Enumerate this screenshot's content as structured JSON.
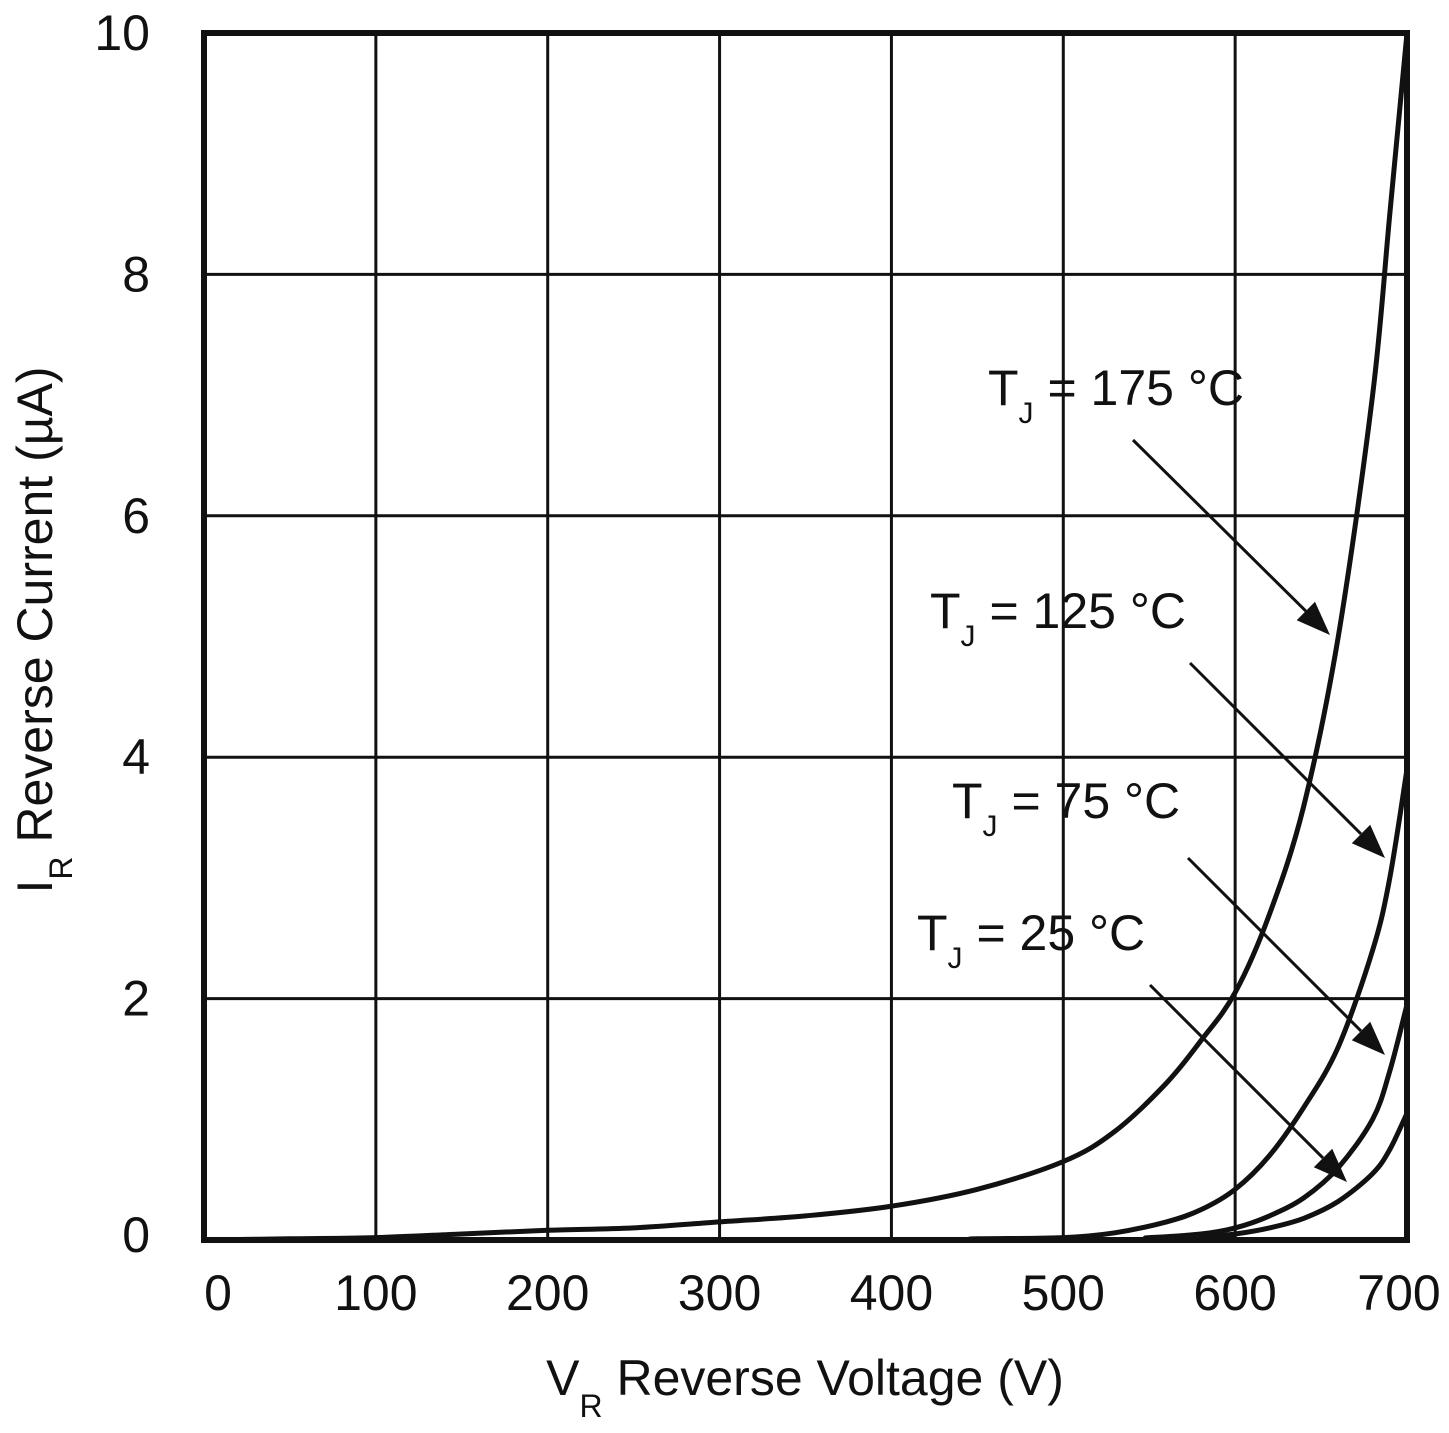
{
  "chart_data": {
    "type": "line",
    "title": "",
    "xlabel": {
      "main": "V",
      "sub": "R",
      "rest": " Reverse Voltage (V)"
    },
    "ylabel": {
      "main": "I",
      "sub": "R",
      "rest": " Reverse Current (µA)"
    },
    "xlim": [
      0,
      700
    ],
    "ylim": [
      0,
      10
    ],
    "xticks": [
      0,
      100,
      200,
      300,
      400,
      500,
      600,
      700
    ],
    "yticks": [
      0,
      2,
      4,
      6,
      8,
      10
    ],
    "xtick_labels": [
      "0",
      "100",
      "200",
      "300",
      "400",
      "500",
      "600",
      "700"
    ],
    "ytick_labels": [
      "0",
      "2",
      "4",
      "6",
      "8",
      "10"
    ],
    "grid": true,
    "colors": {
      "line": "#111111",
      "grid": "#111111",
      "background": "#ffffff"
    },
    "series": [
      {
        "name": "TJ = 175 °C",
        "label": {
          "main": "T",
          "sub": "J",
          "rest": " = 175 °C"
        },
        "x": [
          0,
          50,
          100,
          150,
          200,
          250,
          300,
          350,
          400,
          450,
          500,
          530,
          560,
          580,
          600,
          620,
          640,
          660,
          680,
          690,
          700
        ],
        "y": [
          0,
          0.01,
          0.02,
          0.05,
          0.08,
          0.1,
          0.15,
          0.2,
          0.28,
          0.42,
          0.65,
          0.9,
          1.3,
          1.65,
          2.05,
          2.7,
          3.6,
          5.0,
          7.0,
          8.5,
          10.0
        ]
      },
      {
        "name": "TJ = 125 °C",
        "label": {
          "main": "T",
          "sub": "J",
          "rest": " = 125 °C"
        },
        "x": [
          0,
          400,
          450,
          500,
          530,
          560,
          580,
          600,
          620,
          640,
          660,
          680,
          690,
          700
        ],
        "y": [
          0,
          0.0,
          0.01,
          0.02,
          0.06,
          0.15,
          0.25,
          0.42,
          0.7,
          1.1,
          1.6,
          2.4,
          3.0,
          3.9
        ]
      },
      {
        "name": "TJ = 75 °C",
        "label": {
          "main": "T",
          "sub": "J",
          "rest": " = 75 °C"
        },
        "x": [
          0,
          500,
          550,
          580,
          600,
          620,
          640,
          660,
          680,
          690,
          700
        ],
        "y": [
          0,
          0.0,
          0.02,
          0.05,
          0.1,
          0.2,
          0.35,
          0.6,
          1.0,
          1.4,
          1.95
        ]
      },
      {
        "name": "TJ = 25 °C",
        "label": {
          "main": "T",
          "sub": "J",
          "rest": " = 25 °C"
        },
        "x": [
          0,
          550,
          580,
          600,
          620,
          640,
          660,
          680,
          690,
          700
        ],
        "y": [
          0,
          0.0,
          0.02,
          0.05,
          0.1,
          0.18,
          0.32,
          0.55,
          0.75,
          1.05
        ]
      }
    ]
  }
}
